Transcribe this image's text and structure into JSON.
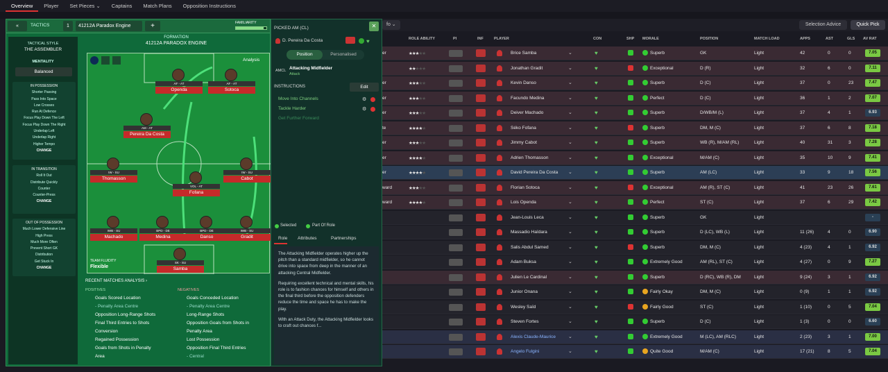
{
  "topnav": {
    "tabs": [
      "Overview",
      "Player",
      "Set Pieces ⌄",
      "Captains",
      "Match Plans",
      "Opposition Instructions"
    ]
  },
  "toolbar": {
    "selection_advice": "Selection Advice",
    "quick_pick": "Quick Pick",
    "info_chip": "fo ⌄"
  },
  "tactics": {
    "back_icon": "«",
    "tab": "TACTICS",
    "slot": "1",
    "name": "41212A Paradox Engine",
    "familiarity": "FAMILIARITY",
    "style_title": "TACTICAL STYLE",
    "style": "THE ASSEMBLER",
    "mentality_title": "MENTALITY",
    "mentality": "Balanced",
    "in_possession": "IN POSSESSION",
    "in_possession_items": [
      "Shorter Passing",
      "Pass Into Space",
      "Low Crosses",
      "Run At Defence",
      "Focus Play Down The Left",
      "Focus Play Down The Right",
      "Underlap Left",
      "Underlap Right",
      "Higher Tempo"
    ],
    "in_transition": "IN TRANSITION",
    "in_transition_items": [
      "Roll It Out",
      "Distribute Quickly",
      "Counter",
      "Counter-Press"
    ],
    "out_possession": "OUT OF POSSESSION",
    "out_possession_items": [
      "Much Lower Defensive Line",
      "High Press",
      "Much More Often",
      "Prevent Short GK",
      "Distribution",
      "Get Stuck In"
    ],
    "change": "CHANGE",
    "formation_title": "FORMATION",
    "formation": "41212A PARADOX ENGINE",
    "analysis": "Analysis",
    "team_fluidity_label": "TEAM FLUIDITY",
    "team_fluidity": "Flexible",
    "recent": "RECENT MATCHES ANALYSIS ›",
    "positives": "POSITIVES",
    "negatives": "NEGATIVES",
    "pos_items": [
      "Goals Scored Location",
      "- Penalty Area Centre",
      "Opposition Long-Range Shots",
      "Final Third Entries to Shots",
      "Conversion",
      "Regained Possession",
      "Goals from Shots in Penalty",
      "Area"
    ],
    "neg_items": [
      "Goals Conceded Location",
      "- Penalty Area Centre",
      "Long-Range Shots",
      "Opposition Goals from Shots in",
      "Penalty Area",
      "Lost Possession",
      "Opposition Final Third Entries",
      "- Central"
    ]
  },
  "pitch_players": [
    {
      "role": "AF - AT",
      "name": "Openda"
    },
    {
      "role": "AF - AT",
      "name": "Sotoca"
    },
    {
      "role": "AM - AT",
      "name": "Pereira Da Costa"
    },
    {
      "role": "IW - SU",
      "name": "Thomasson"
    },
    {
      "role": "IW - SU",
      "name": "Cabot"
    },
    {
      "role": "VOL - AT",
      "name": "Fofana"
    },
    {
      "role": "IWB - SU",
      "name": "Machado"
    },
    {
      "role": "BPD - DE",
      "name": "Medina"
    },
    {
      "role": "BPD - DE",
      "name": "Danso"
    },
    {
      "role": "IWB - SU",
      "name": "Gradit"
    },
    {
      "role": "SK - SU",
      "name": "Samba"
    }
  ],
  "picked": {
    "title": "PICKED AM (CL)",
    "player": "D. Pereira Da Costa",
    "position_tab": "Position",
    "personalised_tab": "Personalised",
    "pos_code": "AMCL",
    "role": "Attacking Midfielder",
    "duty": "Attack",
    "instructions": "INSTRUCTIONS",
    "edit": "Edit",
    "instr": [
      "Move Into Channels",
      "Tackle Harder",
      "Get Further Forward"
    ],
    "selected": "Selected",
    "part_of_role": "Part Of Role",
    "tabs": [
      "Role",
      "Attributes",
      "Partnerships"
    ],
    "desc1": "The Attacking Midfielder operates higher up the pitch than a standard midfielder, so he cannot drive into space from deep in the manner of an attacking Central Midfielder.",
    "desc2": "Requiring excellent technical and mental skills, his role is to fashion chances for himself and others in the final third before the opposition defenders reduce the time and space he has to make the play.",
    "desc3": "With an Attack Duty, the Attacking Midfielder looks to craft out chances f..."
  },
  "table": {
    "headers": [
      "ROLE ABILITY",
      "PI",
      "INF",
      "PLAYER",
      "CON",
      "SHP",
      "MORALE",
      "POSITION",
      "MATCH LOAD",
      "APPS",
      "AST",
      "GLS",
      "AV RAT"
    ],
    "rows": [
      {
        "stub": "er",
        "stars": 3,
        "player": "Brice Samba",
        "morale": "Superb",
        "pos": "GK",
        "load": "Light",
        "apps": "42",
        "ast": "0",
        "gls": "0",
        "rat": "7.05",
        "style": "red"
      },
      {
        "stub": "",
        "stars": 2,
        "player": "Jonathan Gradit",
        "morale": "Exceptional",
        "pos": "D (R)",
        "load": "Light",
        "apps": "32",
        "ast": "6",
        "gls": "0",
        "rat": "7.11",
        "style": "red"
      },
      {
        "stub": "er",
        "stars": 3,
        "player": "Kevin Danso",
        "morale": "Superb",
        "pos": "D (C)",
        "load": "Light",
        "apps": "37",
        "ast": "0",
        "gls": "23",
        "rat": "7.47",
        "style": "red"
      },
      {
        "stub": "er",
        "stars": 3,
        "player": "Facundo Medina",
        "morale": "Perfect",
        "pos": "D (C)",
        "load": "Light",
        "apps": "36",
        "ast": "1",
        "gls": "2",
        "rat": "7.07",
        "style": "red"
      },
      {
        "stub": "er",
        "stars": 3,
        "player": "Deiver Machado",
        "morale": "Superb",
        "pos": "D/WB/M (L)",
        "load": "Light",
        "apps": "37",
        "ast": "4",
        "gls": "1",
        "rat": "6.93",
        "style": "red"
      },
      {
        "stub": "te",
        "stars": 4,
        "player": "Séko Fofana",
        "morale": "Superb",
        "pos": "DM, M (C)",
        "load": "Light",
        "apps": "37",
        "ast": "6",
        "gls": "8",
        "rat": "7.18",
        "style": "red"
      },
      {
        "stub": "er",
        "stars": 3,
        "player": "Jimmy Cabot",
        "morale": "Superb",
        "pos": "WB (R), M/AM (RL)",
        "load": "Light",
        "apps": "40",
        "ast": "31",
        "gls": "3",
        "rat": "7.28",
        "style": "red"
      },
      {
        "stub": "er",
        "stars": 4,
        "player": "Adrien Thomasson",
        "morale": "Exceptional",
        "pos": "M/AM (C)",
        "load": "Light",
        "apps": "35",
        "ast": "10",
        "gls": "9",
        "rat": "7.41",
        "style": "red"
      },
      {
        "stub": "er",
        "stars": 4,
        "player": "David Pereira Da Costa",
        "morale": "Superb",
        "pos": "AM (LC)",
        "load": "Light",
        "apps": "33",
        "ast": "9",
        "gls": "18",
        "rat": "7.56",
        "style": "sel"
      },
      {
        "stub": "ward",
        "stars": 3,
        "player": "Florian Sotoca",
        "morale": "Exceptional",
        "pos": "AM (R), ST (C)",
        "load": "Light",
        "apps": "41",
        "ast": "23",
        "gls": "26",
        "rat": "7.61",
        "style": "red"
      },
      {
        "stub": "ward",
        "stars": 4,
        "player": "Lois Openda",
        "morale": "Perfect",
        "pos": "ST (C)",
        "load": "Light",
        "apps": "37",
        "ast": "6",
        "gls": "29",
        "rat": "7.42",
        "style": "red"
      },
      {
        "stub": "",
        "stars": 0,
        "player": "Jean-Louis Leca",
        "morale": "Superb",
        "pos": "GK",
        "load": "Light",
        "apps": "",
        "ast": "",
        "gls": "",
        "rat": "-",
        "style": "plain"
      },
      {
        "stub": "",
        "stars": 0,
        "player": "Massadio Haïdara",
        "morale": "Superb",
        "pos": "D (LC), WB (L)",
        "load": "Light",
        "apps": "11 (26)",
        "ast": "4",
        "gls": "0",
        "rat": "6.90",
        "style": "plain"
      },
      {
        "stub": "",
        "stars": 0,
        "player": "Salis Abdul Samed",
        "morale": "Superb",
        "pos": "DM, M (C)",
        "load": "Light",
        "apps": "4 (23)",
        "ast": "4",
        "gls": "1",
        "rat": "6.92",
        "style": "plain"
      },
      {
        "stub": "",
        "stars": 0,
        "player": "Adam Buksa",
        "morale": "Extremely Good",
        "pos": "AM (RL), ST (C)",
        "load": "Light",
        "apps": "4 (27)",
        "ast": "0",
        "gls": "9",
        "rat": "7.27",
        "style": "plain"
      },
      {
        "stub": "",
        "stars": 0,
        "player": "Julien Le Cardinal",
        "morale": "Superb",
        "pos": "D (RC), WB (R), DM",
        "load": "Light",
        "apps": "9 (24)",
        "ast": "3",
        "gls": "1",
        "rat": "6.92",
        "style": "red"
      },
      {
        "stub": "",
        "stars": 0,
        "player": "Junior Onana",
        "morale": "Fairly Okay",
        "pos": "DM, M (C)",
        "load": "Light",
        "apps": "0 (9)",
        "ast": "1",
        "gls": "1",
        "rat": "6.92",
        "style": "plain"
      },
      {
        "stub": "",
        "stars": 0,
        "player": "Wesley Saïd",
        "morale": "Fairly Good",
        "pos": "ST (C)",
        "load": "Light",
        "apps": "1 (10)",
        "ast": "0",
        "gls": "5",
        "rat": "7.04",
        "style": "plain"
      },
      {
        "stub": "",
        "stars": 0,
        "player": "Steven Fortes",
        "morale": "Superb",
        "pos": "D (C)",
        "load": "Light",
        "apps": "1 (3)",
        "ast": "0",
        "gls": "0",
        "rat": "6.60",
        "style": "plain"
      },
      {
        "stub": "",
        "stars": 0,
        "player": "Alexis Claude-Maurice",
        "morale": "Extremely Good",
        "pos": "M (LC), AM (RLC)",
        "load": "Light",
        "apps": "2 (23)",
        "ast": "3",
        "gls": "1",
        "rat": "7.00",
        "style": "blue"
      },
      {
        "stub": "",
        "stars": 0,
        "player": "Angelo Fulgini",
        "morale": "Quite Good",
        "pos": "M/AM (C)",
        "load": "Light",
        "apps": "17 (21)",
        "ast": "8",
        "gls": "5",
        "rat": "7.04",
        "style": "blue"
      }
    ]
  }
}
